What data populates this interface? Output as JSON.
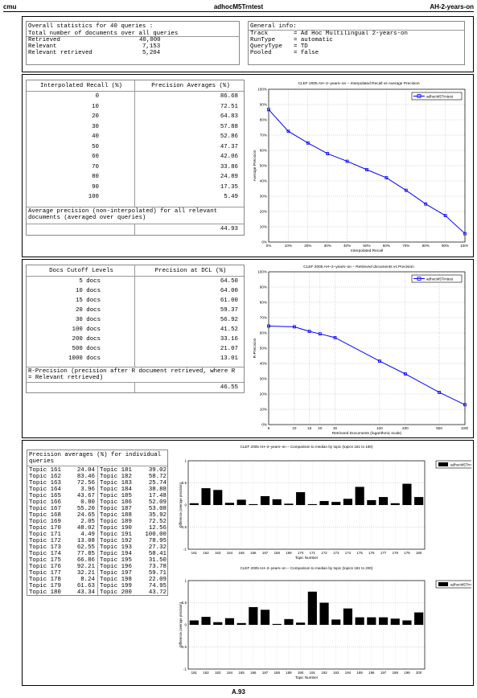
{
  "header": {
    "left": "cmu",
    "center": "adhocM5Trntest",
    "right": "AH-2-years-on"
  },
  "footer": "A.93",
  "overall": {
    "title": "Overall statistics for 40 queries :",
    "rows": [
      {
        "label": "Total number of documents over all queries",
        "value": ""
      },
      {
        "label": "Retrieved",
        "value": "40,000"
      },
      {
        "label": "Relevant",
        "value": "7,153"
      },
      {
        "label": "Relevant retrieved",
        "value": "5,204"
      }
    ]
  },
  "general": {
    "title": "General info:",
    "rows": [
      {
        "label": "Track",
        "value": "= Ad Hoc Multilingual 2-years-on"
      },
      {
        "label": "RunType",
        "value": "= automatic"
      },
      {
        "label": "QueryType",
        "value": "= TD"
      },
      {
        "label": "Pooled",
        "value": "= false"
      }
    ]
  },
  "recall_table": {
    "col1": "Interpolated Recall (%)",
    "col2": "Precision Averages (%)",
    "rows": [
      [
        "0",
        "86.68"
      ],
      [
        "10",
        "72.51"
      ],
      [
        "20",
        "64.83"
      ],
      [
        "30",
        "57.88"
      ],
      [
        "40",
        "52.86"
      ],
      [
        "50",
        "47.37"
      ],
      [
        "60",
        "42.06"
      ],
      [
        "70",
        "33.86"
      ],
      [
        "80",
        "24.89"
      ],
      [
        "90",
        "17.35"
      ],
      [
        "100",
        "5.49"
      ]
    ],
    "note": "Average precision (non-interpolated) for all relevant documents (averaged over queries)",
    "avg": "44.93"
  },
  "dcl_table": {
    "col1": "Docs Cutoff Levels",
    "col2": "Precision at DCL (%)",
    "rows": [
      [
        "5 docs",
        "64.50"
      ],
      [
        "10 docs",
        "64.00"
      ],
      [
        "15 docs",
        "61.00"
      ],
      [
        "20 docs",
        "59.37"
      ],
      [
        "30 docs",
        "56.92"
      ],
      [
        "100 docs",
        "41.52"
      ],
      [
        "200 docs",
        "33.16"
      ],
      [
        "500 docs",
        "21.07"
      ],
      [
        "1000 docs",
        "13.01"
      ]
    ],
    "note": "R-Precision (precision after R document retrieved, where R = Relevant retrieved)",
    "rprec": "46.55"
  },
  "topics_table": {
    "title": "Precision averages (%) for individual queries",
    "rows": [
      [
        "Topic 161",
        "24.04",
        "Topic 181",
        "39.02"
      ],
      [
        "Topic 162",
        "83.46",
        "Topic 182",
        "58.72"
      ],
      [
        "Topic 163",
        "72.56",
        "Topic 183",
        "25.74"
      ],
      [
        "Topic 164",
        "3.96",
        "Topic 184",
        "38.88"
      ],
      [
        "Topic 165",
        "43.67",
        "Topic 185",
        "17.48"
      ],
      [
        "Topic 166",
        "0.80",
        "Topic 186",
        "52.09"
      ],
      [
        "Topic 167",
        "55.20",
        "Topic 187",
        "53.08"
      ],
      [
        "Topic 168",
        "24.65",
        "Topic 188",
        "35.92"
      ],
      [
        "Topic 169",
        "2.05",
        "Topic 189",
        "72.52"
      ],
      [
        "Topic 170",
        "48.02",
        "Topic 190",
        "12.56"
      ],
      [
        "Topic 171",
        "4.49",
        "Topic 191",
        "100.00"
      ],
      [
        "Topic 172",
        "13.08",
        "Topic 192",
        "78.95"
      ],
      [
        "Topic 173",
        "62.55",
        "Topic 193",
        "27.32"
      ],
      [
        "Topic 174",
        "77.85",
        "Topic 194",
        "58.41"
      ],
      [
        "Topic 175",
        "66.86",
        "Topic 195",
        "31.50"
      ],
      [
        "Topic 176",
        "92.21",
        "Topic 196",
        "73.78"
      ],
      [
        "Topic 177",
        "32.21",
        "Topic 197",
        "59.71"
      ],
      [
        "Topic 178",
        "8.24",
        "Topic 198",
        "22.09"
      ],
      [
        "Topic 179",
        "61.63",
        "Topic 199",
        "74.95"
      ],
      [
        "Topic 180",
        "43.34",
        "Topic 200",
        "43.72"
      ]
    ]
  },
  "chart_data": [
    {
      "type": "line",
      "title": "CLEF 2005 AH–2–years–on – Interpolated Recall vs Average Precision",
      "xlabel": "Interpolated Recall",
      "ylabel": "Average Precision",
      "legend": "adhocM5Trntest",
      "legend_position": "top-right",
      "grid": true,
      "x": [
        0,
        10,
        20,
        30,
        40,
        50,
        60,
        70,
        80,
        90,
        100
      ],
      "y": [
        86.68,
        72.51,
        64.83,
        57.88,
        52.86,
        47.37,
        42.06,
        33.86,
        24.89,
        17.35,
        5.49
      ],
      "xticks": [
        "0%",
        "10%",
        "20%",
        "30%",
        "40%",
        "50%",
        "60%",
        "70%",
        "80%",
        "90%",
        "100%"
      ],
      "yticks": [
        "0%",
        "10%",
        "20%",
        "30%",
        "40%",
        "50%",
        "60%",
        "70%",
        "80%",
        "90%",
        "100%"
      ],
      "xlim": [
        0,
        100
      ],
      "ylim": [
        0,
        100
      ]
    },
    {
      "type": "line",
      "title": "CLEF 2005 AH–2–years–on – Retrieved documents vs Precision",
      "xlabel": "Retrieved Documents (logarithmic scale)",
      "ylabel": "R-Precision",
      "legend": "adhocM5Trntest",
      "legend_position": "top-right",
      "grid": true,
      "x_scale": "log",
      "x": [
        5,
        10,
        15,
        20,
        30,
        100,
        200,
        500,
        1000
      ],
      "y": [
        64.5,
        64.0,
        61.0,
        59.37,
        56.92,
        41.52,
        33.16,
        21.07,
        13.01
      ],
      "xticks": [
        "5",
        "10",
        "15",
        "20",
        "30",
        "100",
        "200",
        "500",
        "1000"
      ],
      "yticks": [
        "0%",
        "10%",
        "20%",
        "30%",
        "40%",
        "50%",
        "60%",
        "70%",
        "80%",
        "90%",
        "100%"
      ],
      "xlim": [
        5,
        1000
      ],
      "ylim": [
        0,
        100
      ]
    },
    {
      "type": "bar",
      "title": "CLEF 2005 AH–2–years–on – Comparison to median by topic (topics 161 to 180)",
      "xlabel": "Topic Number",
      "ylabel": "Difference (average precision)",
      "legend": "adhocM5Trntest",
      "legend_position": "top-right",
      "grid": true,
      "categories": [
        "161",
        "162",
        "163",
        "164",
        "165",
        "166",
        "167",
        "168",
        "169",
        "170",
        "171",
        "172",
        "173",
        "174",
        "175",
        "176",
        "177",
        "178",
        "179",
        "180"
      ],
      "values": [
        0.04,
        0.38,
        0.34,
        0.05,
        0.12,
        0.02,
        0.2,
        0.13,
        0.03,
        0.29,
        0.02,
        0.09,
        0.07,
        0.14,
        0.41,
        0.11,
        0.18,
        0.04,
        0.48,
        0.18
      ],
      "yticks": [
        "-1",
        "-0.5",
        "0",
        "0.5",
        "1"
      ],
      "ylim": [
        -1,
        1
      ]
    },
    {
      "type": "bar",
      "title": "CLEF 2005 AH–2–years–on – Comparison to median by topic (topics 181 to 200)",
      "xlabel": "Topic Number",
      "ylabel": "Difference (average precision)",
      "legend": "adhocM5Trntest",
      "legend_position": "top-right",
      "grid": true,
      "categories": [
        "181",
        "182",
        "183",
        "184",
        "185",
        "186",
        "187",
        "188",
        "189",
        "190",
        "191",
        "192",
        "193",
        "194",
        "195",
        "196",
        "197",
        "198",
        "199",
        "200"
      ],
      "values": [
        0.1,
        0.18,
        0.06,
        0.15,
        0.04,
        0.4,
        0.34,
        0.02,
        0.13,
        0.05,
        0.75,
        0.5,
        0.12,
        0.37,
        0.17,
        0.17,
        0.17,
        0.14,
        0.1,
        0.28
      ],
      "yticks": [
        "-1",
        "-0.5",
        "0",
        "0.5",
        "1"
      ],
      "ylim": [
        -1,
        1
      ]
    }
  ]
}
